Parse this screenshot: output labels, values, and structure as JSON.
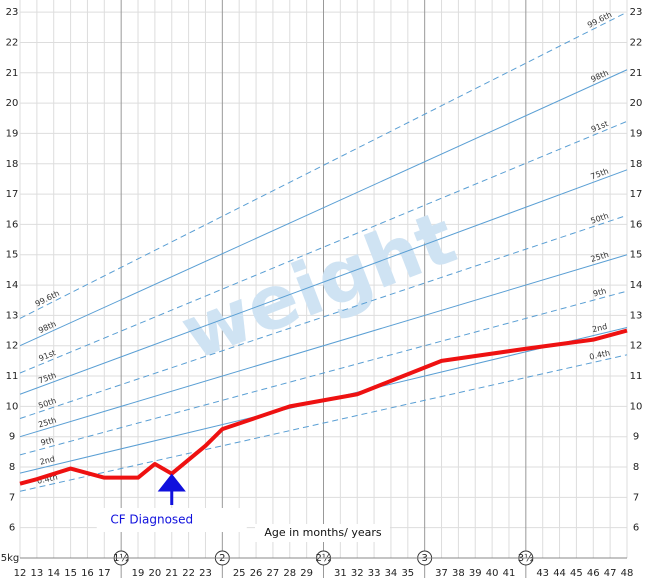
{
  "chart_data": {
    "type": "line",
    "watermark": "weight",
    "xlabel": "Age in months/ years",
    "xlim": [
      12,
      48
    ],
    "ylim": [
      5,
      23.4
    ],
    "y_unit_tick": {
      "value": 5,
      "label": "5kg"
    },
    "yticks": [
      6,
      7,
      8,
      9,
      10,
      11,
      12,
      13,
      14,
      15,
      16,
      17,
      18,
      19,
      20,
      21,
      22,
      23
    ],
    "xticks": [
      12,
      13,
      14,
      15,
      16,
      17,
      {
        "value": 18,
        "label": "1½"
      },
      19,
      20,
      21,
      22,
      23,
      {
        "value": 24,
        "label": "2"
      },
      25,
      26,
      27,
      28,
      29,
      {
        "value": 30,
        "label": "2½"
      },
      31,
      32,
      33,
      34,
      35,
      {
        "value": 36,
        "label": "3"
      },
      37,
      38,
      39,
      40,
      41,
      {
        "value": 42,
        "label": "3½"
      },
      43,
      44,
      45,
      46,
      47,
      48
    ],
    "grid": true,
    "centile_color": "#5a9fd4",
    "centiles": [
      {
        "name": "99.6th",
        "dashed": true,
        "x": [
          12,
          48
        ],
        "values": [
          12.9,
          23.0
        ]
      },
      {
        "name": "98th",
        "dashed": false,
        "x": [
          12,
          48
        ],
        "values": [
          12.0,
          21.1
        ]
      },
      {
        "name": "91st",
        "dashed": true,
        "x": [
          12,
          48
        ],
        "values": [
          11.1,
          19.4
        ]
      },
      {
        "name": "75th",
        "dashed": false,
        "x": [
          12,
          48
        ],
        "values": [
          10.4,
          17.8
        ]
      },
      {
        "name": "50th",
        "dashed": true,
        "x": [
          12,
          48
        ],
        "values": [
          9.6,
          16.3
        ]
      },
      {
        "name": "25th",
        "dashed": false,
        "x": [
          12,
          48
        ],
        "values": [
          9.0,
          15.0
        ]
      },
      {
        "name": "9th",
        "dashed": true,
        "x": [
          12,
          48
        ],
        "values": [
          8.4,
          13.8
        ]
      },
      {
        "name": "2nd",
        "dashed": false,
        "x": [
          12,
          48
        ],
        "values": [
          7.8,
          12.6
        ]
      },
      {
        "name": "0.4th",
        "dashed": true,
        "x": [
          12,
          48
        ],
        "values": [
          7.2,
          11.7
        ]
      }
    ],
    "series": [
      {
        "color": "#ee1111",
        "x": [
          12,
          13,
          15,
          17,
          19,
          20,
          21,
          23,
          24,
          28,
          32,
          37,
          42,
          46,
          48
        ],
        "values": [
          7.45,
          7.6,
          7.95,
          7.65,
          7.65,
          8.1,
          7.78,
          8.7,
          9.25,
          10.0,
          10.4,
          11.5,
          11.9,
          12.2,
          12.5
        ]
      }
    ],
    "annotation": {
      "text": "CF Diagnosed",
      "x": 21,
      "color": "#1010dd"
    }
  }
}
